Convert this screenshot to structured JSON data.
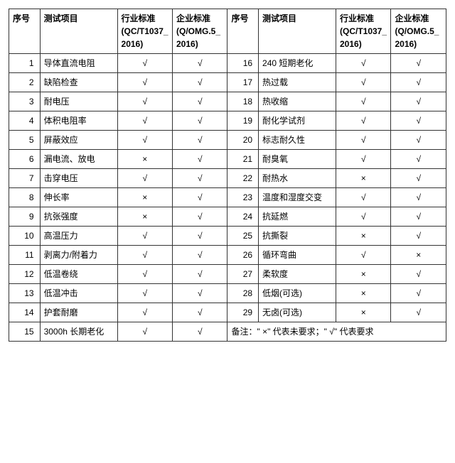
{
  "headers": {
    "seq": "序号",
    "item": "测试项目",
    "industry": "行业标准 (QC/T1037_2016)",
    "enterprise": "企业标准 (Q/OMG.5_2016)",
    "industry2": "行业标准 (QC/T1037_2016)",
    "enterprise2": "企业标准 (Q/OMG.5_2016)"
  },
  "left_rows": [
    {
      "seq": "1",
      "item": "导体直流电阻",
      "ind": "√",
      "ent": "√"
    },
    {
      "seq": "2",
      "item": "缺陷检查",
      "ind": "√",
      "ent": "√"
    },
    {
      "seq": "3",
      "item": "耐电压",
      "ind": "√",
      "ent": "√"
    },
    {
      "seq": "4",
      "item": "体积电阻率",
      "ind": "√",
      "ent": "√"
    },
    {
      "seq": "5",
      "item": "屏蔽效应",
      "ind": "√",
      "ent": "√"
    },
    {
      "seq": "6",
      "item": "漏电流、放电",
      "ind": "×",
      "ent": "√"
    },
    {
      "seq": "7",
      "item": "击穿电压",
      "ind": "√",
      "ent": "√"
    },
    {
      "seq": "8",
      "item": "伸长率",
      "ind": "×",
      "ent": "√"
    },
    {
      "seq": "9",
      "item": "抗张强度",
      "ind": "×",
      "ent": "√"
    },
    {
      "seq": "10",
      "item": "高温压力",
      "ind": "√",
      "ent": "√"
    },
    {
      "seq": "11",
      "item": "剥离力/附着力",
      "ind": "√",
      "ent": "√"
    },
    {
      "seq": "12",
      "item": "低温卷绕",
      "ind": "√",
      "ent": "√"
    },
    {
      "seq": "13",
      "item": "低温冲击",
      "ind": "√",
      "ent": "√"
    },
    {
      "seq": "14",
      "item": "护套耐磨",
      "ind": "√",
      "ent": "√"
    },
    {
      "seq": "15",
      "item": "3000h 长期老化",
      "ind": "√",
      "ent": "√"
    }
  ],
  "right_rows": [
    {
      "seq": "16",
      "item": "240 短期老化",
      "ind": "√",
      "ent": "√"
    },
    {
      "seq": "17",
      "item": "热过载",
      "ind": "√",
      "ent": "√"
    },
    {
      "seq": "18",
      "item": "热收缩",
      "ind": "√",
      "ent": "√"
    },
    {
      "seq": "19",
      "item": "耐化学试剂",
      "ind": "√",
      "ent": "√"
    },
    {
      "seq": "20",
      "item": "标志耐久性",
      "ind": "√",
      "ent": "√"
    },
    {
      "seq": "21",
      "item": "耐臭氧",
      "ind": "√",
      "ent": "√"
    },
    {
      "seq": "22",
      "item": "耐热水",
      "ind": "×",
      "ent": "√"
    },
    {
      "seq": "23",
      "item": "温度和湿度交变",
      "ind": "√",
      "ent": "√"
    },
    {
      "seq": "24",
      "item": "抗延燃",
      "ind": "√",
      "ent": "√"
    },
    {
      "seq": "25",
      "item": "抗撕裂",
      "ind": "×",
      "ent": "√"
    },
    {
      "seq": "26",
      "item": "循环弯曲",
      "ind": "√",
      "ent": "×"
    },
    {
      "seq": "27",
      "item": "柔软度",
      "ind": "×",
      "ent": "√"
    },
    {
      "seq": "28",
      "item": "低烟(可选)",
      "ind": "×",
      "ent": "√"
    },
    {
      "seq": "29",
      "item": "无卤(可选)",
      "ind": "×",
      "ent": "√"
    }
  ],
  "note": "备注：\" ×\" 代表未要求；\" √\" 代表要求",
  "colors": {
    "border": "#333333",
    "background": "#ffffff",
    "text": "#000000"
  }
}
